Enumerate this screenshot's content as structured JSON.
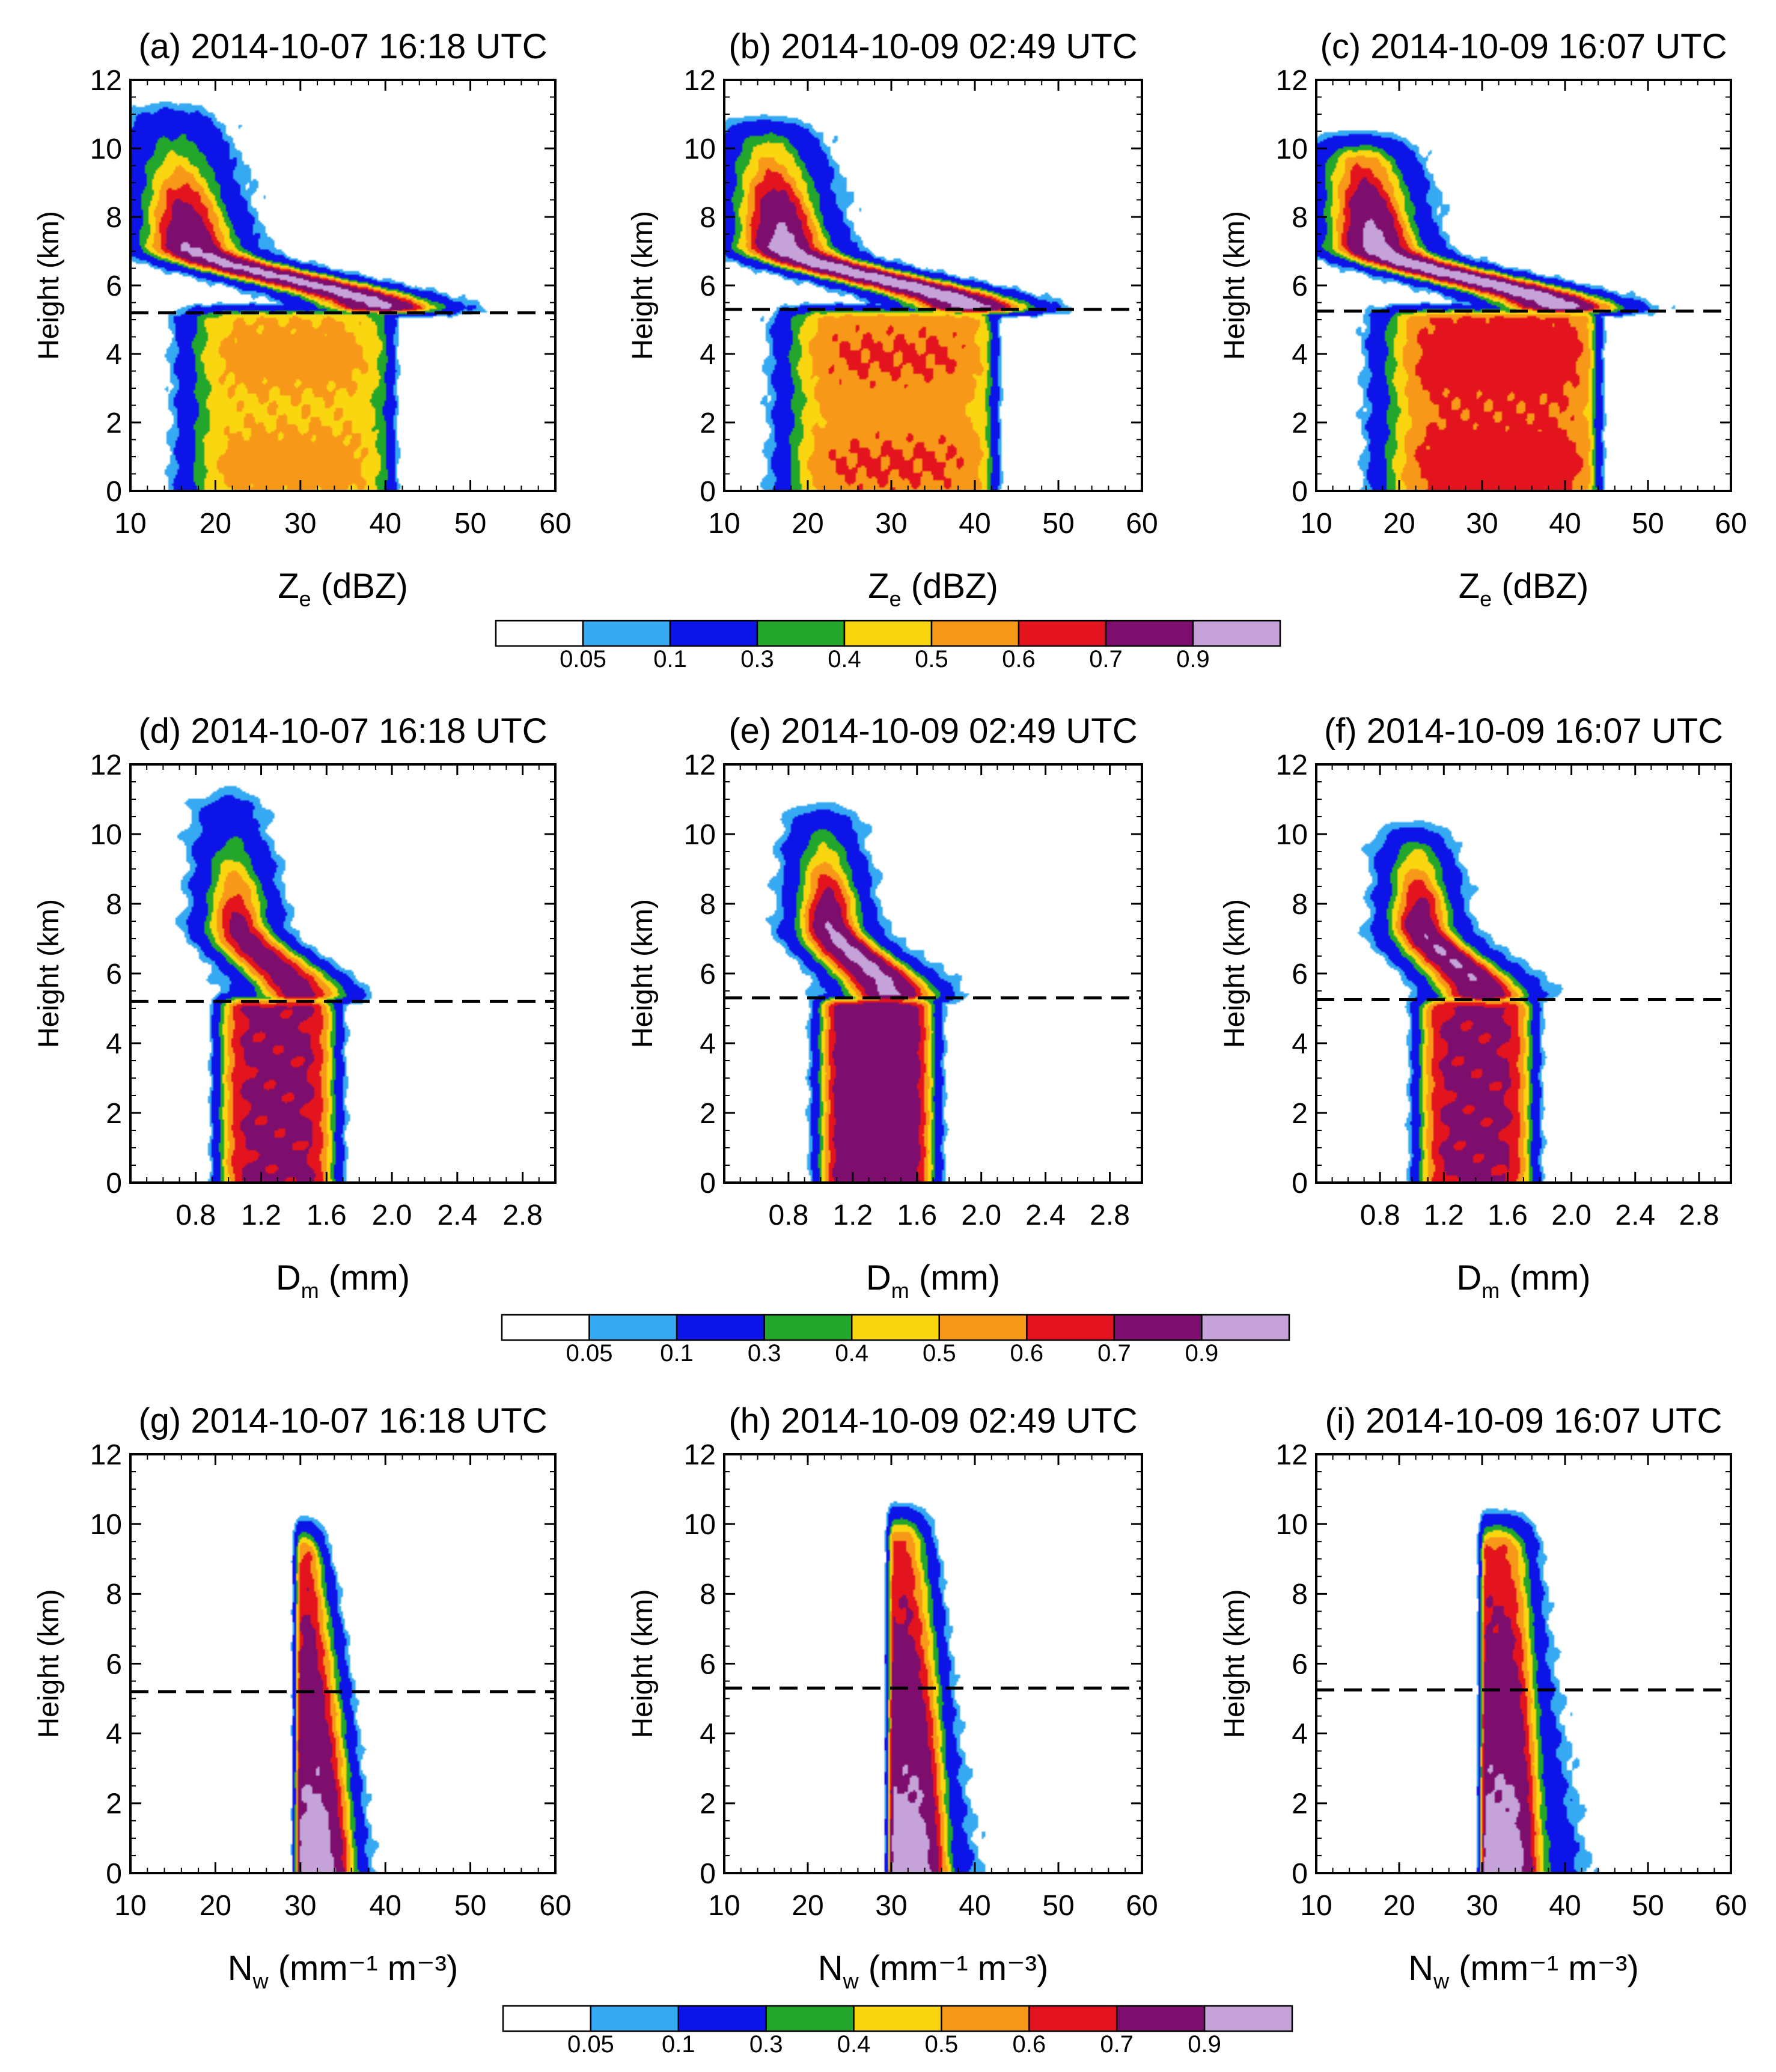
{
  "levels": [
    "0.05",
    "0.1",
    "0.3",
    "0.4",
    "0.5",
    "0.6",
    "0.7",
    "0.9"
  ],
  "colors": [
    "#ffffff",
    "#35a9f2",
    "#0c14e8",
    "#23a62c",
    "#fad611",
    "#f89818",
    "#e3141d",
    "#7d0e6e",
    "#c5a3d8"
  ],
  "chart_data": [
    {
      "type": "contour",
      "title": "(a) 2014-10-07 16:18 UTC",
      "xlabel": {
        "main": "Z",
        "sub": "e",
        "rest": " (dBZ)"
      },
      "ylabel": "Height (km)",
      "xlim": [
        10,
        60
      ],
      "ylim": [
        0,
        12
      ],
      "xticks": [
        "10",
        "20",
        "30",
        "40",
        "50",
        "60"
      ],
      "yticks": [
        "0",
        "2",
        "4",
        "6",
        "8",
        "10",
        "12"
      ],
      "melting_level_km": 5.2,
      "shape": "ze",
      "shift": 0,
      "core_strength": 0.95
    },
    {
      "type": "contour",
      "title": "(b) 2014-10-09 02:49 UTC",
      "xlabel": {
        "main": "Z",
        "sub": "e",
        "rest": " (dBZ)"
      },
      "ylabel": "Height (km)",
      "xlim": [
        10,
        60
      ],
      "ylim": [
        0,
        12
      ],
      "xticks": [
        "10",
        "20",
        "30",
        "40",
        "50",
        "60"
      ],
      "yticks": [
        "0",
        "2",
        "4",
        "6",
        "8",
        "10",
        "12"
      ],
      "melting_level_km": 5.3,
      "shape": "ze",
      "shift": 1,
      "core_strength": 1.0
    },
    {
      "type": "contour",
      "title": "(c) 2014-10-09 16:07 UTC",
      "xlabel": {
        "main": "Z",
        "sub": "e",
        "rest": " (dBZ)"
      },
      "ylabel": "Height (km)",
      "xlim": [
        10,
        60
      ],
      "ylim": [
        0,
        12
      ],
      "xticks": [
        "10",
        "20",
        "30",
        "40",
        "50",
        "60"
      ],
      "yticks": [
        "0",
        "2",
        "4",
        "6",
        "8",
        "10",
        "12"
      ],
      "melting_level_km": 5.25,
      "shape": "ze",
      "shift": 2,
      "core_strength": 1.0
    },
    {
      "type": "contour",
      "title": "(d) 2014-10-07 16:18 UTC",
      "xlabel": {
        "main": "D",
        "sub": "m",
        "rest": " (mm)"
      },
      "ylabel": "Height (km)",
      "xlim": [
        0.4,
        3.0
      ],
      "ylim": [
        0,
        12
      ],
      "xticks": [
        "0.8",
        "1.2",
        "1.6",
        "2.0",
        "2.4",
        "2.8"
      ],
      "yticks": [
        "0",
        "2",
        "4",
        "6",
        "8",
        "10",
        "12"
      ],
      "melting_level_km": 5.2,
      "shape": "dm",
      "shift": 0,
      "core_strength": 0.8
    },
    {
      "type": "contour",
      "title": "(e) 2014-10-09 02:49 UTC",
      "xlabel": {
        "main": "D",
        "sub": "m",
        "rest": " (mm)"
      },
      "ylabel": "Height (km)",
      "xlim": [
        0.4,
        3.0
      ],
      "ylim": [
        0,
        12
      ],
      "xticks": [
        "0.8",
        "1.2",
        "1.6",
        "2.0",
        "2.4",
        "2.8"
      ],
      "yticks": [
        "0",
        "2",
        "4",
        "6",
        "8",
        "10",
        "12"
      ],
      "melting_level_km": 5.3,
      "shape": "dm",
      "shift": 1,
      "core_strength": 0.95
    },
    {
      "type": "contour",
      "title": "(f) 2014-10-09 16:07 UTC",
      "xlabel": {
        "main": "D",
        "sub": "m",
        "rest": " (mm)"
      },
      "ylabel": "Height (km)",
      "xlim": [
        0.4,
        3.0
      ],
      "ylim": [
        0,
        12
      ],
      "xticks": [
        "0.8",
        "1.2",
        "1.6",
        "2.0",
        "2.4",
        "2.8"
      ],
      "yticks": [
        "0",
        "2",
        "4",
        "6",
        "8",
        "10",
        "12"
      ],
      "melting_level_km": 5.25,
      "shape": "dm",
      "shift": 2,
      "core_strength": 0.9
    },
    {
      "type": "contour",
      "title": "(g) 2014-10-07 16:18 UTC",
      "xlabel": {
        "main": "N",
        "sub": "w",
        "rest": " (mm⁻¹ m⁻³)"
      },
      "ylabel": "Height (km)",
      "xlim": [
        10,
        60
      ],
      "ylim": [
        0,
        12
      ],
      "xticks": [
        "10",
        "20",
        "30",
        "40",
        "50",
        "60"
      ],
      "yticks": [
        "0",
        "2",
        "4",
        "6",
        "8",
        "10",
        "12"
      ],
      "melting_level_km": 5.2,
      "shape": "nw",
      "shift": 0,
      "core_strength": 1.0
    },
    {
      "type": "contour",
      "title": "(h) 2014-10-09 02:49 UTC",
      "xlabel": {
        "main": "N",
        "sub": "w",
        "rest": " (mm⁻¹ m⁻³)"
      },
      "ylabel": "Height (km)",
      "xlim": [
        10,
        60
      ],
      "ylim": [
        0,
        12
      ],
      "xticks": [
        "10",
        "20",
        "30",
        "40",
        "50",
        "60"
      ],
      "yticks": [
        "0",
        "2",
        "4",
        "6",
        "8",
        "10",
        "12"
      ],
      "melting_level_km": 5.3,
      "shape": "nw",
      "shift": 1,
      "core_strength": 1.0
    },
    {
      "type": "contour",
      "title": "(i) 2014-10-09 16:07 UTC",
      "xlabel": {
        "main": "N",
        "sub": "w",
        "rest": " (mm⁻¹ m⁻³)"
      },
      "ylabel": "Height (km)",
      "xlim": [
        10,
        60
      ],
      "ylim": [
        0,
        12
      ],
      "xticks": [
        "10",
        "20",
        "30",
        "40",
        "50",
        "60"
      ],
      "yticks": [
        "0",
        "2",
        "4",
        "6",
        "8",
        "10",
        "12"
      ],
      "melting_level_km": 5.25,
      "shape": "nw",
      "shift": 2,
      "core_strength": 1.0
    }
  ]
}
